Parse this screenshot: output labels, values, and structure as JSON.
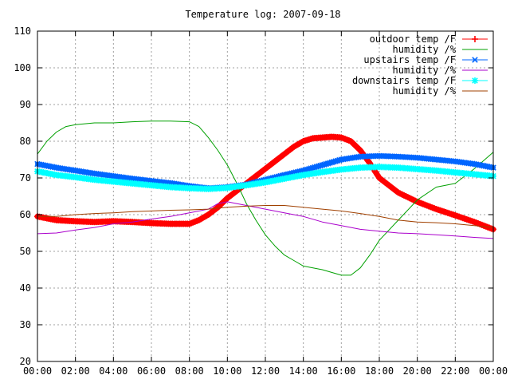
{
  "chart_data": {
    "type": "line",
    "title": "Temperature log: 2007-09-18",
    "xlabel": "",
    "ylabel": "",
    "xlim": [
      0,
      24
    ],
    "ylim": [
      20,
      110
    ],
    "grid": true,
    "legend_position": "top-right",
    "x_ticks": [
      "00:00",
      "02:00",
      "04:00",
      "06:00",
      "08:00",
      "10:00",
      "12:00",
      "14:00",
      "16:00",
      "18:00",
      "20:00",
      "22:00",
      "00:00"
    ],
    "y_ticks": [
      "20",
      "30",
      "40",
      "50",
      "60",
      "70",
      "80",
      "90",
      "100",
      "110"
    ],
    "series": [
      {
        "name": "outdoor temp /F",
        "color": "#ff0000",
        "marker": "plus",
        "x": [
          0,
          1,
          2,
          3,
          4,
          5,
          6,
          7,
          8,
          8.5,
          9,
          9.5,
          10,
          10.5,
          11,
          11.5,
          12,
          12.5,
          13,
          13.5,
          14,
          14.5,
          15,
          15.5,
          16,
          16.5,
          17,
          17.5,
          18,
          19,
          20,
          21,
          22,
          23,
          24
        ],
        "y": [
          59.5,
          58.5,
          58.2,
          58.0,
          58.2,
          58.0,
          57.7,
          57.5,
          57.5,
          58.5,
          60.0,
          62.0,
          64.5,
          66.5,
          68.5,
          70.5,
          72.5,
          74.5,
          76.5,
          78.5,
          80.0,
          80.8,
          81.0,
          81.2,
          81.0,
          80.0,
          77.5,
          74.0,
          70.0,
          66.0,
          63.5,
          61.5,
          59.8,
          58.0,
          56.0
        ]
      },
      {
        "name": "humidity /%",
        "color": "#00a000",
        "marker": "none",
        "x": [
          0,
          0.5,
          1,
          1.5,
          2,
          3,
          4,
          5,
          6,
          7,
          8,
          8.5,
          9,
          9.5,
          10,
          10.5,
          11,
          11.5,
          12,
          12.5,
          13,
          13.5,
          14,
          15,
          16,
          16.5,
          17,
          17.5,
          18,
          19,
          20,
          21,
          22,
          23,
          24
        ],
        "y": [
          76.5,
          80.0,
          82.5,
          84.0,
          84.5,
          85.0,
          85.0,
          85.3,
          85.5,
          85.5,
          85.3,
          84.0,
          81.0,
          77.5,
          73.5,
          68.5,
          63.0,
          58.5,
          54.5,
          51.5,
          49.0,
          47.5,
          46.0,
          45.0,
          43.5,
          43.5,
          45.5,
          49.0,
          53.0,
          58.5,
          64.0,
          67.5,
          68.5,
          72.5,
          77.0
        ]
      },
      {
        "name": "upstairs temp /F",
        "color": "#0066ff",
        "marker": "cross",
        "x": [
          0,
          1,
          2,
          3,
          4,
          5,
          6,
          7,
          8,
          9,
          10,
          11,
          12,
          13,
          14,
          15,
          16,
          17,
          18,
          19,
          20,
          21,
          22,
          23,
          24
        ],
        "y": [
          73.8,
          72.8,
          72.0,
          71.2,
          70.5,
          69.8,
          69.2,
          68.6,
          67.8,
          67.2,
          67.5,
          68.2,
          69.5,
          70.8,
          72.0,
          73.5,
          75.0,
          75.8,
          76.0,
          75.8,
          75.5,
          75.0,
          74.5,
          73.8,
          72.8
        ]
      },
      {
        "name": "humidity /%",
        "color": "#aa00cc",
        "marker": "none",
        "x": [
          0,
          1,
          2,
          3,
          4,
          5,
          6,
          7,
          8,
          9,
          9.5,
          10,
          11,
          12,
          13,
          14,
          15,
          16,
          17,
          18,
          19,
          20,
          21,
          22,
          23,
          24
        ],
        "y": [
          54.8,
          55.0,
          55.8,
          56.5,
          57.5,
          58.0,
          58.8,
          59.5,
          60.5,
          61.5,
          63.0,
          63.5,
          62.5,
          61.5,
          60.5,
          59.5,
          58.0,
          57.0,
          56.0,
          55.5,
          55.0,
          54.8,
          54.5,
          54.2,
          53.8,
          53.5
        ]
      },
      {
        "name": "downstairs temp /F",
        "color": "#00ffff",
        "marker": "star",
        "x": [
          0,
          1,
          2,
          3,
          4,
          5,
          6,
          7,
          8,
          9,
          10,
          11,
          12,
          13,
          14,
          15,
          16,
          17,
          18,
          19,
          20,
          21,
          22,
          23,
          24
        ],
        "y": [
          71.8,
          70.8,
          70.2,
          69.5,
          69.0,
          68.5,
          68.0,
          67.5,
          67.2,
          67.0,
          67.3,
          68.0,
          68.8,
          69.8,
          70.8,
          71.6,
          72.3,
          72.8,
          73.0,
          72.8,
          72.4,
          72.0,
          71.5,
          71.0,
          70.5
        ]
      },
      {
        "name": "humidity /%",
        "color": "#a04000",
        "marker": "none",
        "x": [
          0,
          1,
          2,
          3,
          4,
          5,
          6,
          7,
          8,
          9,
          10,
          11,
          12,
          13,
          14,
          15,
          16,
          17,
          18,
          19,
          20,
          21,
          22,
          23,
          24
        ],
        "y": [
          59.5,
          59.5,
          60.0,
          60.3,
          60.5,
          60.8,
          61.0,
          61.2,
          61.3,
          61.5,
          62.0,
          62.3,
          62.5,
          62.5,
          62.0,
          61.5,
          61.0,
          60.3,
          59.5,
          58.5,
          58.0,
          57.8,
          57.5,
          57.0,
          56.5
        ]
      }
    ]
  }
}
